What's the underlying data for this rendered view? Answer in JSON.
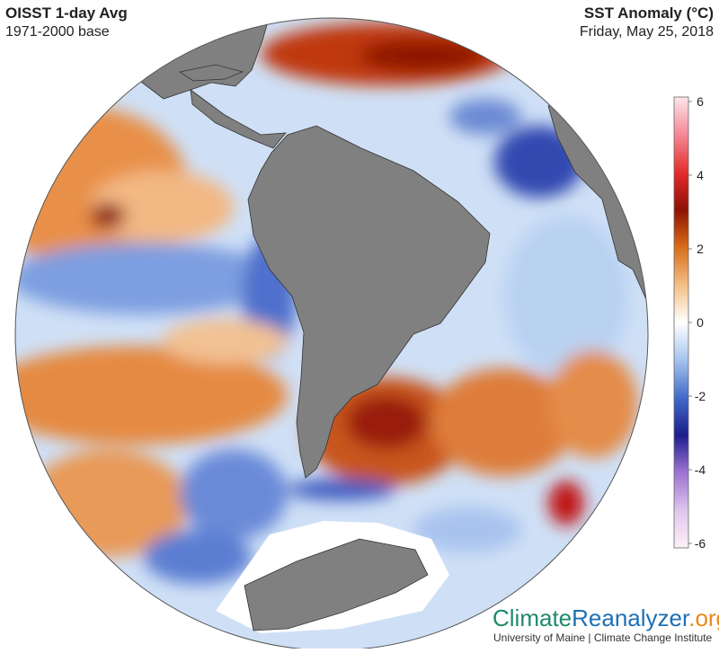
{
  "header": {
    "title": "OISST 1-day Avg",
    "subtitle": "1971-2000 base",
    "variable": "SST Anomaly (°C)",
    "date": "Friday, May 25, 2018"
  },
  "colorbar": {
    "lim": [
      -6,
      6
    ],
    "ticks": [
      6,
      4,
      2,
      0,
      -2,
      -4,
      -6
    ]
  },
  "footer": {
    "logo": [
      "Climate",
      "Reanalyzer",
      ".org"
    ],
    "credit": "University of Maine | Climate Change Institute"
  }
}
